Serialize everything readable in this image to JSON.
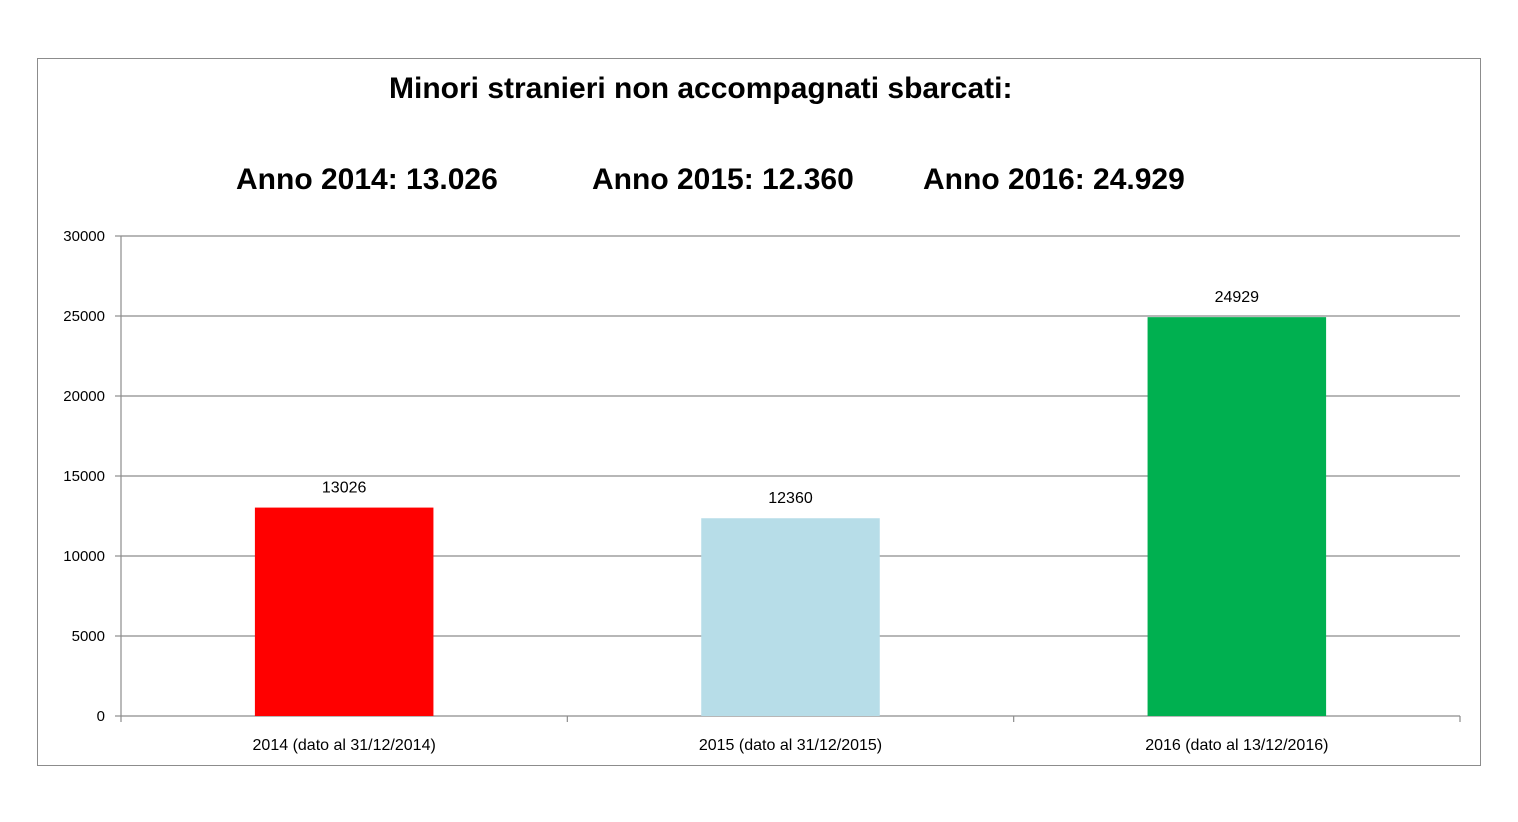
{
  "chart_data": {
    "type": "bar",
    "title": "Minori stranieri non accompagnati sbarcati:",
    "subtitles": [
      "Anno 2014: 13.026",
      "Anno 2015: 12.360",
      "Anno 2016: 24.929"
    ],
    "categories": [
      "2014 (dato al 31/12/2014)",
      "2015 (dato al 31/12/2015)",
      "2016 (dato al 13/12/2016)"
    ],
    "values": [
      13026,
      12360,
      24929
    ],
    "data_labels": [
      "13026",
      "12360",
      "24929"
    ],
    "colors": [
      "#ff0000",
      "#b7dde8",
      "#00b050"
    ],
    "ylim": [
      0,
      30000
    ],
    "yticks": [
      0,
      5000,
      10000,
      15000,
      20000,
      25000,
      30000
    ],
    "xlabel": "",
    "ylabel": "",
    "grid": true,
    "legend": "none"
  }
}
